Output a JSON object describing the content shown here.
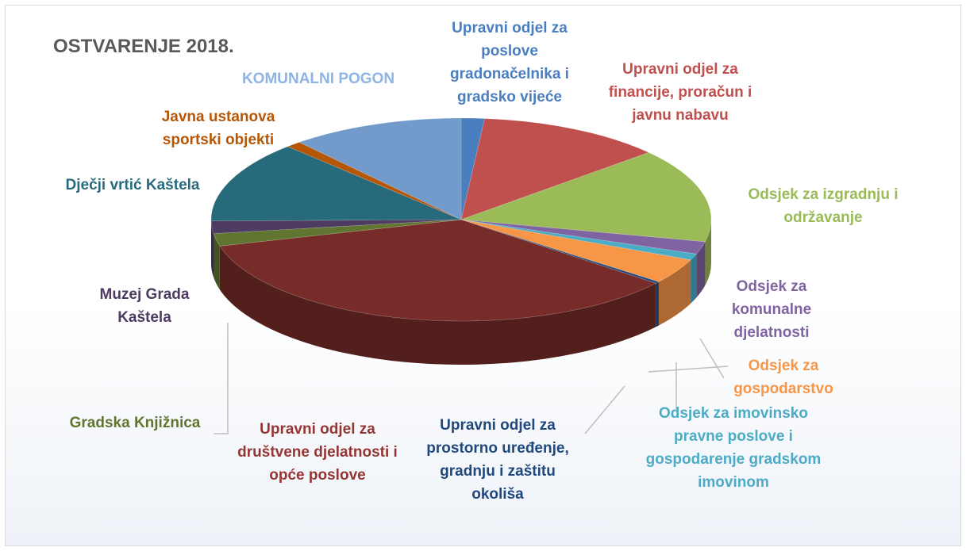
{
  "chart_data": {
    "type": "pie",
    "title": "OSTVARENJE 2018.",
    "categories": [
      "Upravni odjel za poslove gradonačelnika i gradsko vijeće",
      "Upravni odjel za financije, proračun i javnu nabavu",
      "Odsjek za izgradnju i održavanje",
      "Odsjek za komunalne djelatnosti",
      "Odsjek za imovinsko pravne poslove i gospodarenje gradskom imovinom",
      "Odsjek za gospodarstvo",
      "Upravni odjel za prostorno uređenje, gradnju i zaštitu okoliša",
      "Upravni odjel za društvene djelatnosti i opće poslove",
      "Gradska Knjižnica",
      "Muzej Grada Kaštela",
      "Dječji vrtić Kaštela",
      "Javna ustanova sportski objekti",
      "KOMUNALNI POGON"
    ],
    "values": [
      1.5,
      12,
      15,
      2,
      1,
      4,
      0.3,
      35,
      2,
      2,
      13,
      1,
      11.2
    ],
    "colors": [
      "#4a7ebf",
      "#c0504d",
      "#9bbb59",
      "#8064a2",
      "#4bacc6",
      "#f79646",
      "#1f497d",
      "#772c2a",
      "#5f7530",
      "#4d3b62",
      "#276a7c",
      "#b65708",
      "#729aca"
    ]
  }
}
